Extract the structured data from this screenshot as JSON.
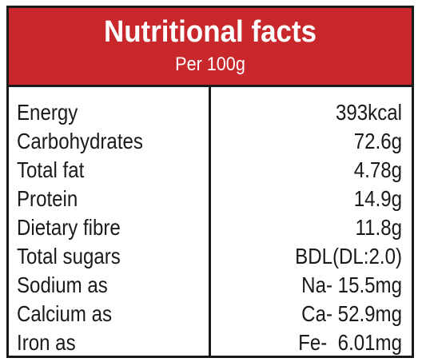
{
  "header": {
    "title": "Nutritional facts",
    "subtitle": "Per 100g"
  },
  "colors": {
    "header_background": "#c8282c",
    "border": "#1a1a1a",
    "text": "#1a1a1a"
  },
  "rows": [
    {
      "name": "Energy",
      "value": "393kcal"
    },
    {
      "name": "Carbohydrates",
      "value": "72.6g"
    },
    {
      "name": "Total fat",
      "value": "4.78g"
    },
    {
      "name": "Protein",
      "value": "14.9g"
    },
    {
      "name": "Dietary fibre",
      "value": "11.8g"
    },
    {
      "name": "Total sugars",
      "value": "BDL(DL:2.0)"
    },
    {
      "name": "Sodium as",
      "value": "Na- 15.5mg"
    },
    {
      "name": "Calcium as",
      "value": "Ca- 52.9mg"
    },
    {
      "name": "Iron  as",
      "value": "Fe-  6.01mg"
    }
  ]
}
